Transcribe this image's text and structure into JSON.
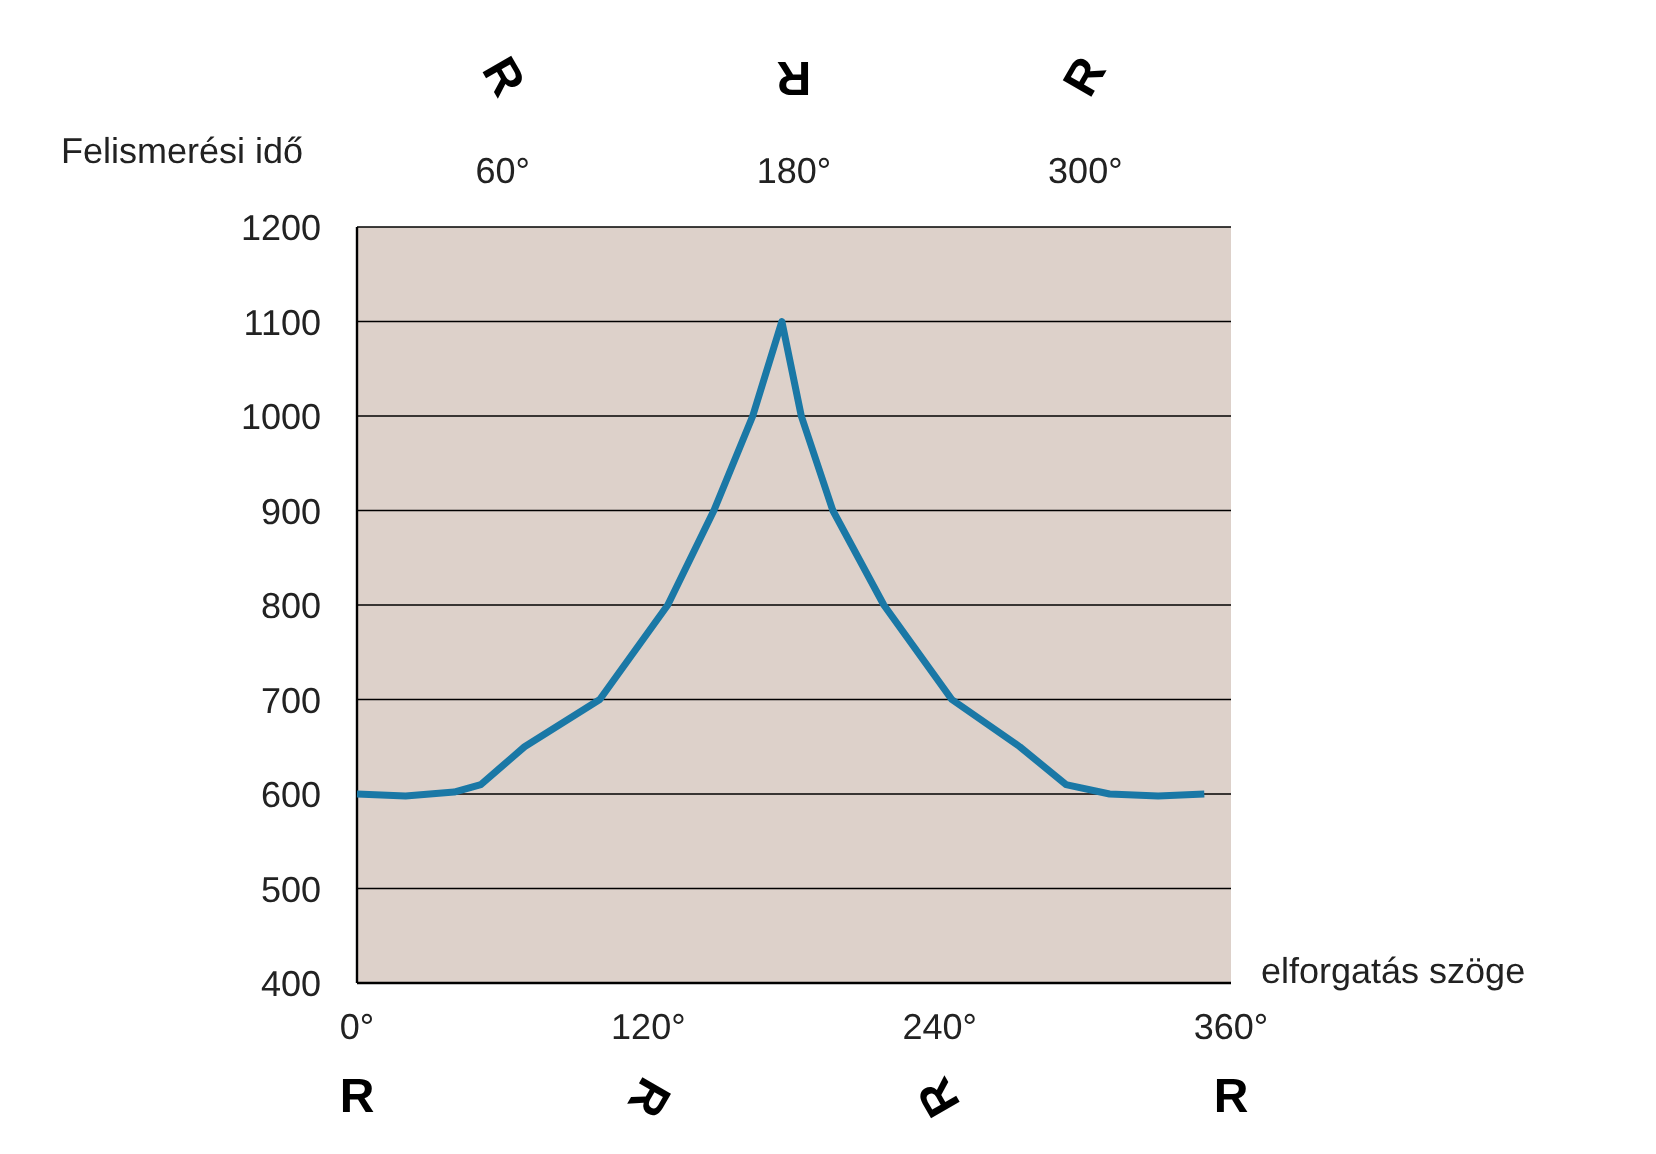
{
  "chart_data": {
    "type": "line",
    "xlabel": "elforgatás szöge",
    "ylabel": "Felismerési idő",
    "x": [
      0,
      20,
      40,
      51,
      69,
      100,
      128,
      147,
      163,
      175,
      183,
      196,
      217,
      245,
      273,
      292,
      310,
      330,
      349
    ],
    "series": [
      {
        "color": "#1a78a6",
        "values": [
          600,
          598,
          602,
          610,
          650,
          700,
          800,
          900,
          1000,
          1100,
          1000,
          900,
          800,
          700,
          650,
          610,
          600,
          598,
          600
        ]
      }
    ],
    "xlim": [
      0,
      360
    ],
    "ylim": [
      400,
      1200
    ],
    "xticks": [
      {
        "value": 0,
        "label": "0°"
      },
      {
        "value": 120,
        "label": "120°"
      },
      {
        "value": 240,
        "label": "240°"
      },
      {
        "value": 360,
        "label": "360°"
      }
    ],
    "x2lim": [
      0,
      360
    ],
    "x2ticks": [
      {
        "value": 60,
        "label": "60°"
      },
      {
        "value": 180,
        "label": "180°"
      },
      {
        "value": 300,
        "label": "300°"
      }
    ],
    "yticks": [
      400,
      500,
      600,
      700,
      800,
      900,
      1000,
      1100,
      1200
    ],
    "annotations": [
      "R",
      "R",
      "R",
      "R",
      "R",
      "R",
      "R"
    ],
    "grid": "y",
    "marker": "none",
    "line_style": "solid"
  }
}
